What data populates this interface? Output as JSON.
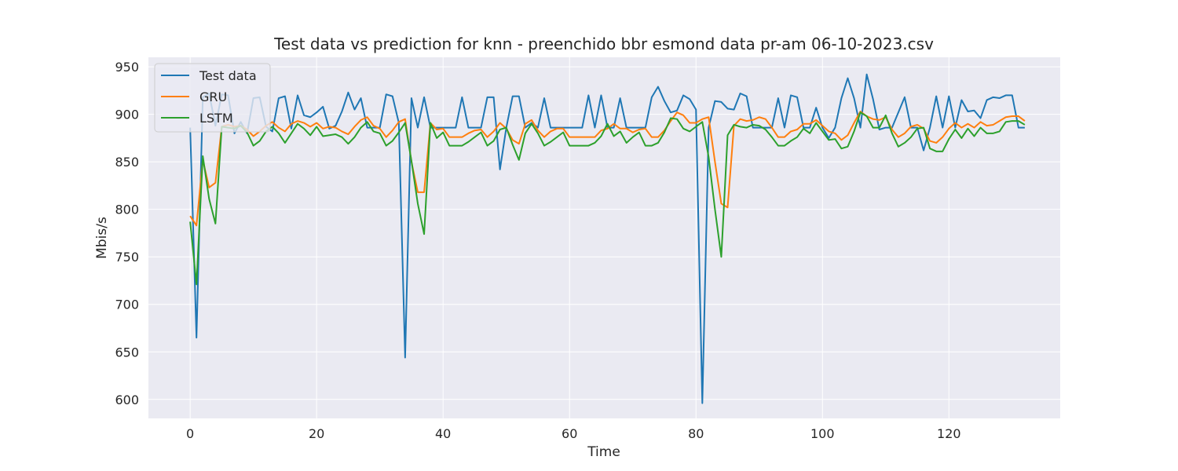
{
  "chart_data": {
    "type": "line",
    "title": "Test data vs prediction for knn - preenchido bbr esmond data pr-am 06-10-2023.csv",
    "xlabel": "Time",
    "ylabel": "Mbis/s",
    "xlim": [
      -6.6,
      137.6
    ],
    "ylim": [
      580,
      960
    ],
    "xticks": [
      0,
      20,
      40,
      60,
      80,
      100,
      120
    ],
    "yticks": [
      600,
      650,
      700,
      750,
      800,
      850,
      900,
      950
    ],
    "grid": true,
    "legend_position": "top-left",
    "colors": {
      "background": "#eaeaf2",
      "grid": "#ffffff"
    },
    "series": [
      {
        "name": "Test data",
        "color": "#1f77b4",
        "values": [
          886,
          665,
          918,
          922,
          888,
          921,
          920,
          880,
          892,
          880,
          917,
          918,
          887,
          882,
          917,
          919,
          885,
          920,
          899,
          897,
          902,
          908,
          885,
          888,
          903,
          923,
          905,
          917,
          886,
          886,
          886,
          921,
          919,
          891,
          644,
          917,
          886,
          918,
          886,
          886,
          886,
          886,
          886,
          918,
          886,
          886,
          886,
          918,
          918,
          842,
          886,
          919,
          919,
          886,
          891,
          886,
          917,
          886,
          886,
          886,
          886,
          886,
          886,
          920,
          886,
          920,
          886,
          886,
          917,
          886,
          886,
          886,
          886,
          918,
          929,
          914,
          902,
          904,
          920,
          916,
          905,
          596,
          886,
          914,
          913,
          906,
          905,
          922,
          919,
          886,
          886,
          886,
          886,
          917,
          886,
          920,
          918,
          886,
          886,
          907,
          886,
          875,
          886,
          917,
          938,
          917,
          886,
          942,
          916,
          884,
          886,
          886,
          902,
          918,
          886,
          886,
          862,
          886,
          919,
          886,
          919,
          886,
          915,
          903,
          904,
          896,
          915,
          918,
          917,
          920,
          920,
          886,
          886
        ],
        "values_precision_note": ""
      },
      {
        "name": "GRU",
        "color": "#ff7f0e",
        "values": [
          793,
          783,
          852,
          823,
          828,
          887,
          889,
          887,
          888,
          884,
          877,
          882,
          888,
          892,
          886,
          882,
          890,
          893,
          891,
          887,
          891,
          885,
          887,
          886,
          882,
          879,
          887,
          894,
          897,
          888,
          885,
          876,
          883,
          892,
          895,
          850,
          818,
          818,
          891,
          884,
          885,
          876,
          876,
          876,
          880,
          883,
          884,
          876,
          882,
          891,
          885,
          873,
          869,
          890,
          894,
          883,
          876,
          882,
          885,
          885,
          876,
          876,
          876,
          876,
          876,
          883,
          885,
          890,
          885,
          885,
          881,
          884,
          885,
          876,
          876,
          883,
          893,
          902,
          899,
          891,
          891,
          895,
          897,
          850,
          806,
          802,
          888,
          895,
          893,
          894,
          897,
          895,
          886,
          876,
          876,
          882,
          884,
          890,
          890,
          894,
          888,
          882,
          880,
          873,
          878,
          891,
          903,
          898,
          895,
          894,
          897,
          884,
          876,
          880,
          887,
          889,
          885,
          872,
          870,
          876,
          885,
          891,
          886,
          890,
          886,
          892,
          888,
          889,
          893,
          897,
          898,
          898,
          893
        ]
      },
      {
        "name": "LSTM",
        "color": "#2ca02c",
        "values": [
          787,
          721,
          856,
          811,
          785,
          887,
          886,
          885,
          888,
          881,
          867,
          872,
          882,
          887,
          880,
          870,
          880,
          890,
          885,
          878,
          887,
          877,
          878,
          879,
          876,
          869,
          876,
          886,
          892,
          882,
          880,
          867,
          872,
          881,
          891,
          851,
          806,
          774,
          891,
          875,
          881,
          867,
          867,
          867,
          871,
          876,
          881,
          867,
          872,
          884,
          886,
          868,
          852,
          880,
          890,
          880,
          867,
          871,
          876,
          881,
          867,
          867,
          867,
          867,
          870,
          877,
          890,
          877,
          882,
          870,
          876,
          881,
          867,
          867,
          870,
          881,
          896,
          895,
          885,
          882,
          887,
          892,
          855,
          800,
          750,
          878,
          889,
          887,
          886,
          889,
          888,
          884,
          876,
          867,
          867,
          872,
          876,
          885,
          880,
          891,
          882,
          873,
          874,
          864,
          866,
          882,
          902,
          898,
          886,
          886,
          899,
          880,
          866,
          870,
          876,
          885,
          886,
          864,
          861,
          861,
          874,
          884,
          875,
          885,
          877,
          886,
          880,
          880,
          882,
          892,
          893,
          893,
          889
        ]
      }
    ]
  }
}
